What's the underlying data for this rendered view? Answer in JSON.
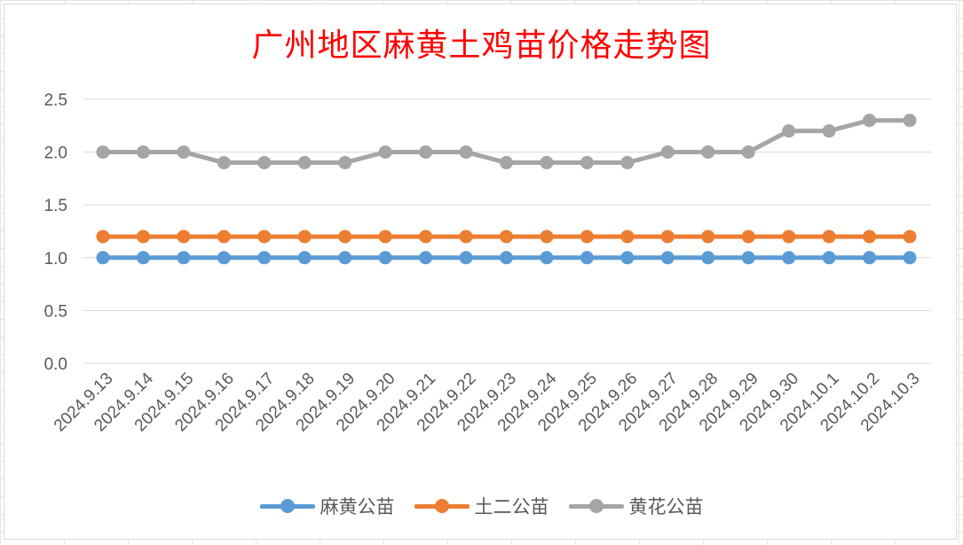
{
  "chart_data": {
    "type": "line",
    "title": "广州地区麻黄土鸡苗价格走势图",
    "xlabel": "",
    "ylabel": "",
    "ylim": [
      0,
      2.5
    ],
    "yticks": [
      "0.0",
      "0.5",
      "1.0",
      "1.5",
      "2.0",
      "2.5"
    ],
    "ytick_values": [
      0,
      0.5,
      1.0,
      1.5,
      2.0,
      2.5
    ],
    "grid": true,
    "legend_position": "bottom",
    "categories": [
      "2024.9.13",
      "2024.9.14",
      "2024.9.15",
      "2024.9.16",
      "2024.9.17",
      "2024.9.18",
      "2024.9.19",
      "2024.9.20",
      "2024.9.21",
      "2024.9.22",
      "2024.9.23",
      "2024.9.24",
      "2024.9.25",
      "2024.9.26",
      "2024.9.27",
      "2024.9.28",
      "2024.9.29",
      "2024.9.30",
      "2024.10.1",
      "2024.10.2",
      "2024.10.3"
    ],
    "series": [
      {
        "name": "麻黄公苗",
        "color": "#5b9bd5",
        "values": [
          1.0,
          1.0,
          1.0,
          1.0,
          1.0,
          1.0,
          1.0,
          1.0,
          1.0,
          1.0,
          1.0,
          1.0,
          1.0,
          1.0,
          1.0,
          1.0,
          1.0,
          1.0,
          1.0,
          1.0,
          1.0
        ]
      },
      {
        "name": "土二公苗",
        "color": "#ed7d31",
        "values": [
          1.2,
          1.2,
          1.2,
          1.2,
          1.2,
          1.2,
          1.2,
          1.2,
          1.2,
          1.2,
          1.2,
          1.2,
          1.2,
          1.2,
          1.2,
          1.2,
          1.2,
          1.2,
          1.2,
          1.2,
          1.2
        ]
      },
      {
        "name": "黄花公苗",
        "color": "#a5a5a5",
        "values": [
          2.0,
          2.0,
          2.0,
          1.9,
          1.9,
          1.9,
          1.9,
          2.0,
          2.0,
          2.0,
          1.9,
          1.9,
          1.9,
          1.9,
          2.0,
          2.0,
          2.0,
          2.2,
          2.2,
          2.3,
          2.3
        ]
      }
    ]
  }
}
